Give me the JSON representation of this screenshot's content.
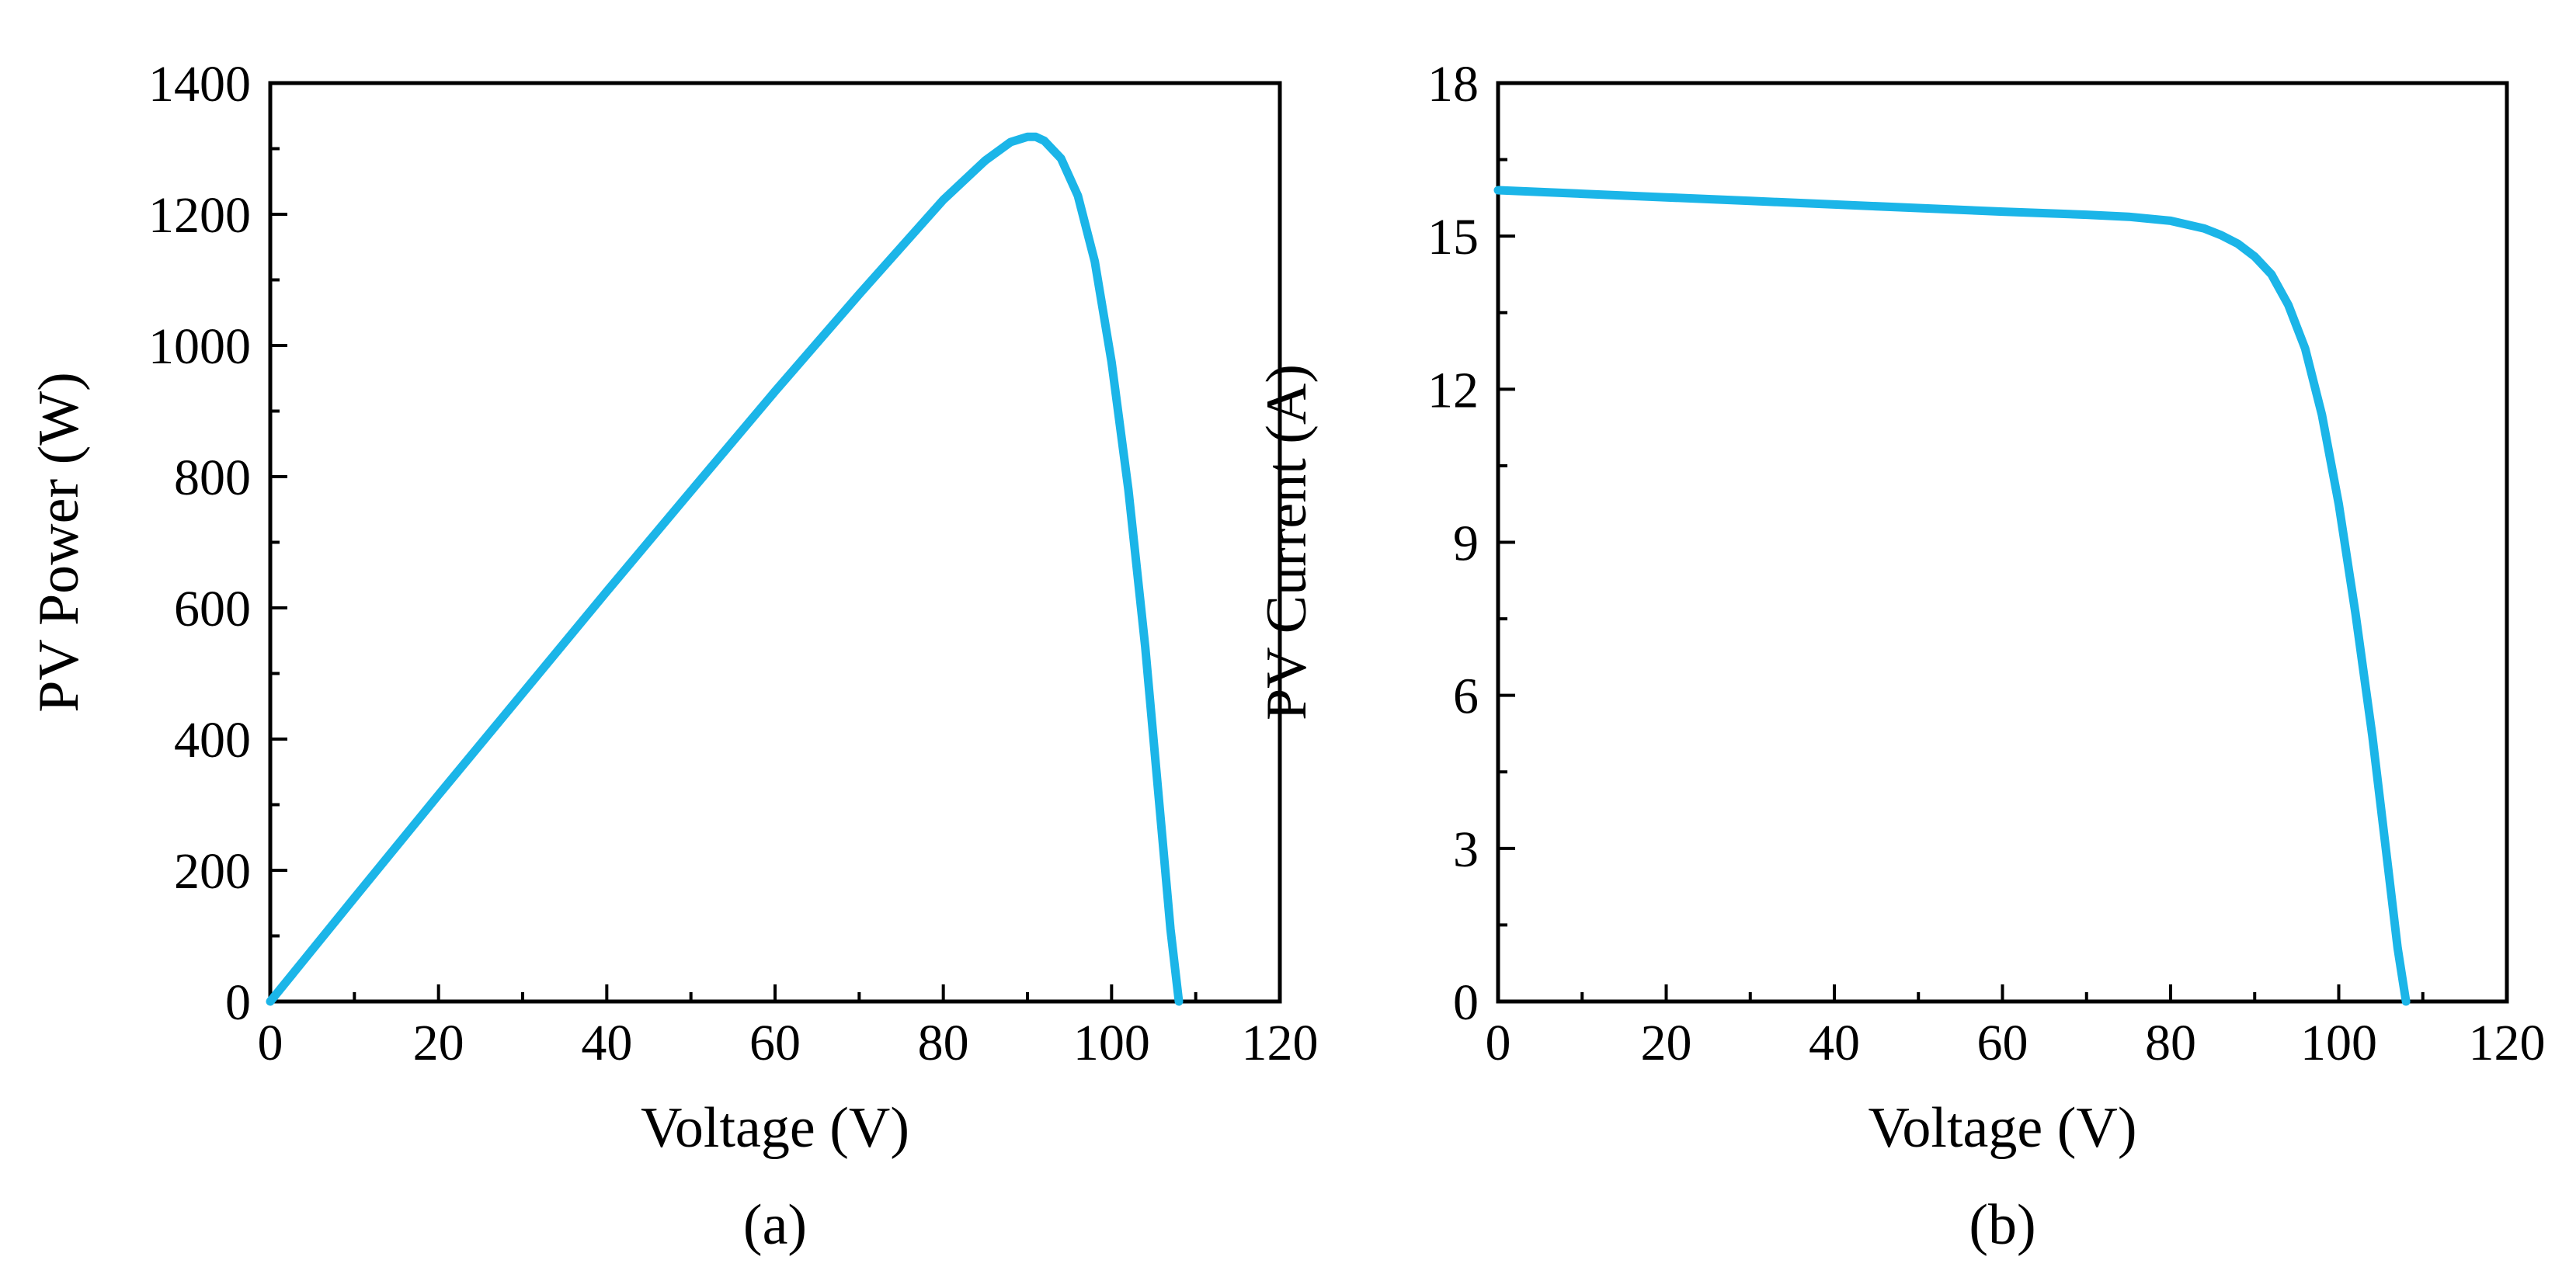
{
  "chart_data": [
    {
      "type": "line",
      "caption": "(a)",
      "title": "",
      "xlabel": "Voltage (V)",
      "ylabel": "PV Power (W)",
      "xlim": [
        0,
        120
      ],
      "ylim": [
        0,
        1400
      ],
      "xticks": [
        0,
        20,
        40,
        60,
        80,
        100,
        120
      ],
      "xtick_labels": [
        "0",
        "20",
        "40",
        "60",
        "80",
        "100",
        "120"
      ],
      "yticks": [
        0,
        200,
        400,
        600,
        800,
        1000,
        1200,
        1400
      ],
      "ytick_labels": [
        "0",
        "200",
        "400",
        "600",
        "800",
        "1000",
        "1200",
        "1400"
      ],
      "x_minor_step": 10,
      "y_minor_step": 100,
      "grid": false,
      "color": "#1bb5e8",
      "series": [
        {
          "name": "PV Power",
          "x": [
            0,
            10,
            20,
            30,
            40,
            50,
            60,
            70,
            80,
            85,
            88,
            90,
            91,
            92,
            94,
            96,
            98,
            100,
            102,
            104,
            106,
            107,
            108
          ],
          "y": [
            0,
            158,
            315,
            470,
            625,
            778,
            930,
            1078,
            1222,
            1282,
            1310,
            1318,
            1318,
            1312,
            1285,
            1228,
            1128,
            975,
            780,
            540,
            255,
            110,
            0
          ]
        }
      ]
    },
    {
      "type": "line",
      "caption": "(b)",
      "title": "",
      "xlabel": "Voltage (V)",
      "ylabel": "PV Current (A)",
      "xlim": [
        0,
        120
      ],
      "ylim": [
        0,
        18
      ],
      "xticks": [
        0,
        20,
        40,
        60,
        80,
        100,
        120
      ],
      "xtick_labels": [
        "0",
        "20",
        "40",
        "60",
        "80",
        "100",
        "120"
      ],
      "yticks": [
        0,
        3,
        6,
        9,
        12,
        15,
        18
      ],
      "ytick_labels": [
        "0",
        "3",
        "6",
        "9",
        "12",
        "15",
        "18"
      ],
      "x_minor_step": 10,
      "y_minor_step": 1.5,
      "grid": false,
      "color": "#1bb5e8",
      "series": [
        {
          "name": "PV Current",
          "x": [
            0,
            10,
            20,
            30,
            40,
            50,
            60,
            70,
            75,
            80,
            84,
            86,
            88,
            90,
            92,
            94,
            96,
            98,
            100,
            102,
            104,
            106,
            107,
            108
          ],
          "y": [
            15.9,
            15.83,
            15.76,
            15.69,
            15.62,
            15.55,
            15.48,
            15.42,
            15.38,
            15.3,
            15.15,
            15.02,
            14.85,
            14.6,
            14.25,
            13.65,
            12.8,
            11.5,
            9.75,
            7.6,
            5.2,
            2.45,
            1.05,
            0
          ]
        }
      ]
    }
  ]
}
